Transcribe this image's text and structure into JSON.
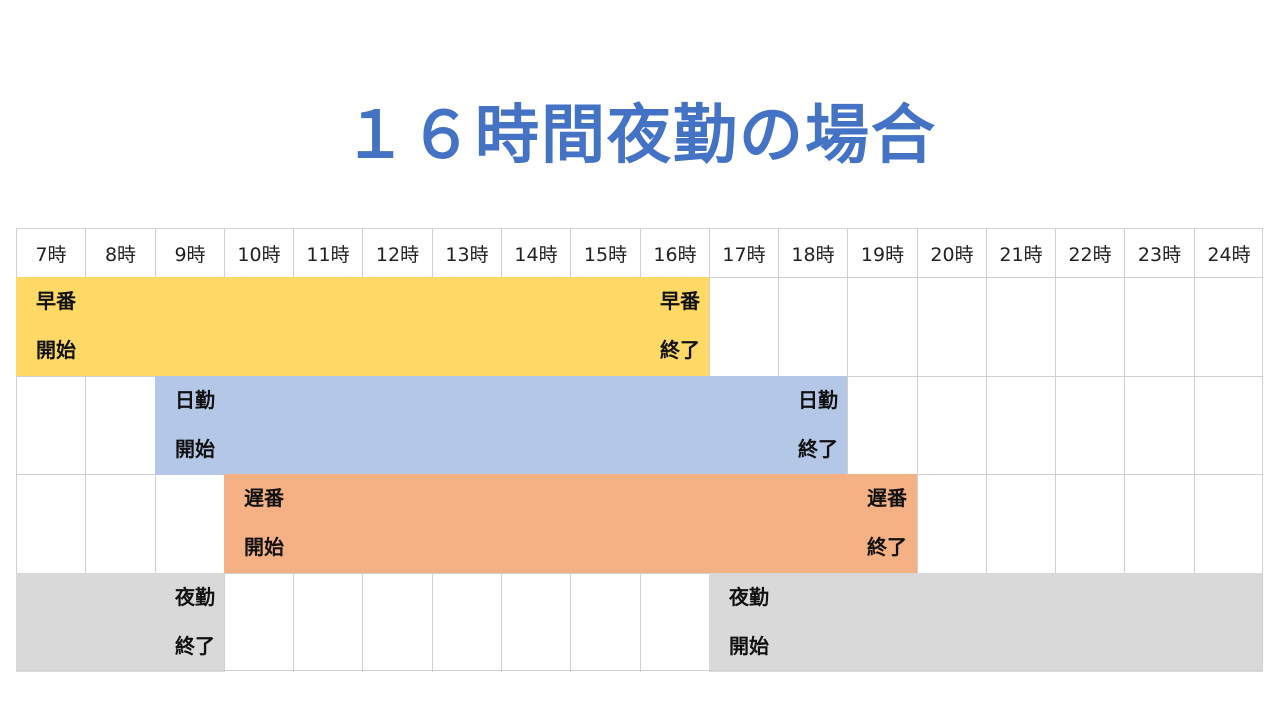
{
  "title": "１６時間夜勤の場合",
  "hours": [
    "7時",
    "8時",
    "9時",
    "10時",
    "11時",
    "12時",
    "13時",
    "14時",
    "15時",
    "16時",
    "17時",
    "18時",
    "19時",
    "20時",
    "21時",
    "22時",
    "23時",
    "24時"
  ],
  "shifts": [
    {
      "name": "早番",
      "start_col": 0,
      "end_col": 10,
      "color": "#FFD966",
      "start_label_1": "早番",
      "start_label_2": "開始",
      "end_label_1": "早番",
      "end_label_2": "終了"
    },
    {
      "name": "日勤",
      "start_col": 2,
      "end_col": 12,
      "color": "#B4C7E7",
      "start_label_1": "日勤",
      "start_label_2": "開始",
      "end_label_1": "日勤",
      "end_label_2": "終了"
    },
    {
      "name": "遅番",
      "start_col": 3,
      "end_col": 13,
      "color": "#F4B183",
      "start_label_1": "遅番",
      "start_label_2": "開始",
      "end_label_1": "遅番",
      "end_label_2": "終了"
    },
    {
      "name": "夜勤",
      "color": "#D9D9D9",
      "segments": [
        [
          0,
          3
        ],
        [
          10,
          18
        ]
      ],
      "end_label_1": "夜勤",
      "end_label_2": "終了",
      "end_label_col": 2,
      "start_label_1": "夜勤",
      "start_label_2": "開始",
      "start_label_col": 10
    }
  ]
}
